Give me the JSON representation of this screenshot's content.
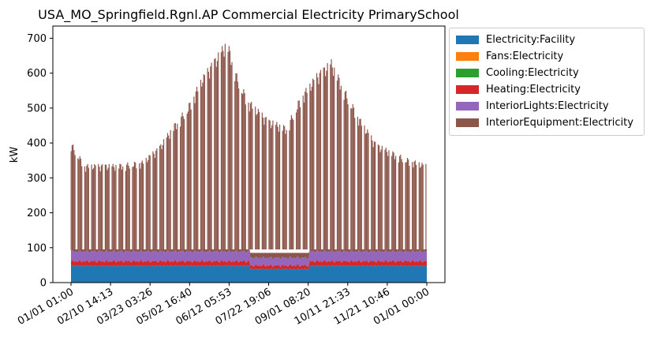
{
  "chart_data": {
    "type": "area",
    "stacked": true,
    "title": "USA_MO_Springfield.Rgnl.AP Commercial Electricity PrimarySchool",
    "xlabel": "",
    "ylabel": "kW",
    "ylim": [
      0,
      735
    ],
    "yticks": [
      0,
      100,
      200,
      300,
      400,
      500,
      600,
      700
    ],
    "xticks": [
      "01/01 01:00",
      "02/10 14:13",
      "03/23 03:26",
      "05/02 16:40",
      "06/12 05:53",
      "07/22 19:06",
      "09/01 08:20",
      "10/11 21:33",
      "11/21 10:46",
      "01/01 00:00"
    ],
    "legend_position": "outside-upper-right",
    "grid": false,
    "series": [
      {
        "name": "Electricity:Facility",
        "color": "#1f77b4",
        "typical_level_kw": 48
      },
      {
        "name": "Fans:Electricity",
        "color": "#ff7f0e",
        "typical_level_kw": 0
      },
      {
        "name": "Cooling:Electricity",
        "color": "#2ca02c",
        "typical_level_kw": 0
      },
      {
        "name": "Heating:Electricity",
        "color": "#d62728",
        "typical_level_kw": 13
      },
      {
        "name": "InteriorLights:Electricity",
        "color": "#9467bd",
        "typical_level_kw": 30
      },
      {
        "name": "InteriorEquipment:Electricity",
        "color": "#8c564b",
        "typical_level_kw": 240
      }
    ],
    "daily_peak_total_kw": [
      [
        "01/01",
        405
      ],
      [
        "01/15",
        340
      ],
      [
        "02/01",
        340
      ],
      [
        "02/15",
        340
      ],
      [
        "03/01",
        345
      ],
      [
        "03/15",
        350
      ],
      [
        "04/01",
        390
      ],
      [
        "04/15",
        450
      ],
      [
        "05/01",
        510
      ],
      [
        "05/15",
        590
      ],
      [
        "06/01",
        660
      ],
      [
        "06/10",
        700
      ],
      [
        "06/20",
        600
      ],
      [
        "07/01",
        530
      ],
      [
        "07/22",
        470
      ],
      [
        "08/10",
        450
      ],
      [
        "08/25",
        540
      ],
      [
        "09/10",
        600
      ],
      [
        "09/25",
        640
      ],
      [
        "10/10",
        550
      ],
      [
        "10/25",
        470
      ],
      [
        "11/10",
        400
      ],
      [
        "11/25",
        380
      ],
      [
        "12/10",
        360
      ],
      [
        "12/31",
        340
      ]
    ],
    "base_total_kw": 95
  }
}
